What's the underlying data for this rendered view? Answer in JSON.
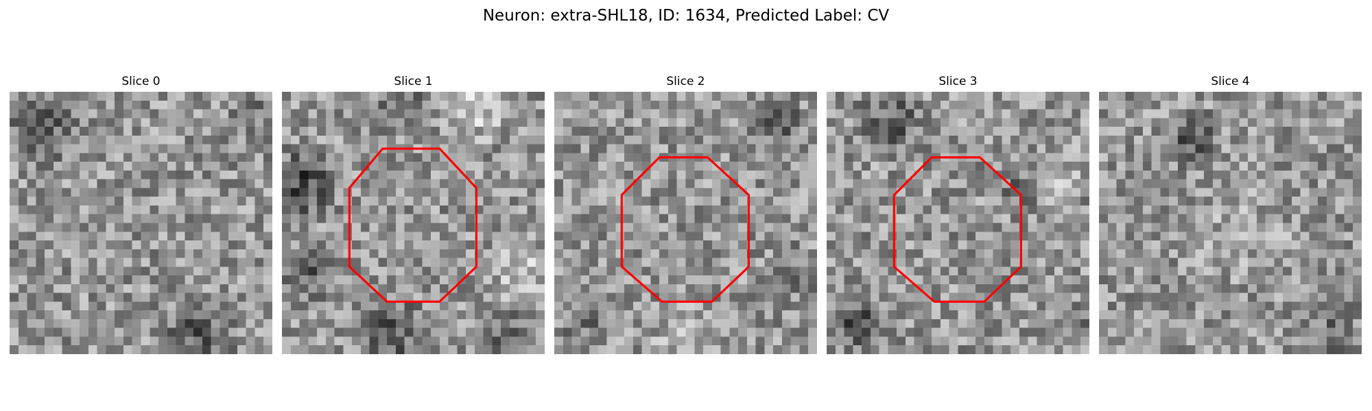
{
  "figure": {
    "title": "Neuron: extra-SHL18, ID: 1634, Predicted Label: CV"
  },
  "colors": {
    "background": "#ffffff",
    "contour": "#ff0000",
    "colormap": "grayscale"
  },
  "panels": [
    {
      "title": "Slice 0",
      "has_contour": false,
      "image_content": "grayscale-noise-patch"
    },
    {
      "title": "Slice 1",
      "has_contour": true,
      "image_content": "grayscale-noise-patch"
    },
    {
      "title": "Slice 2",
      "has_contour": true,
      "image_content": "grayscale-noise-patch"
    },
    {
      "title": "Slice 3",
      "has_contour": true,
      "image_content": "grayscale-noise-patch"
    },
    {
      "title": "Slice 4",
      "has_contour": false,
      "image_content": "grayscale-noise-patch"
    }
  ]
}
